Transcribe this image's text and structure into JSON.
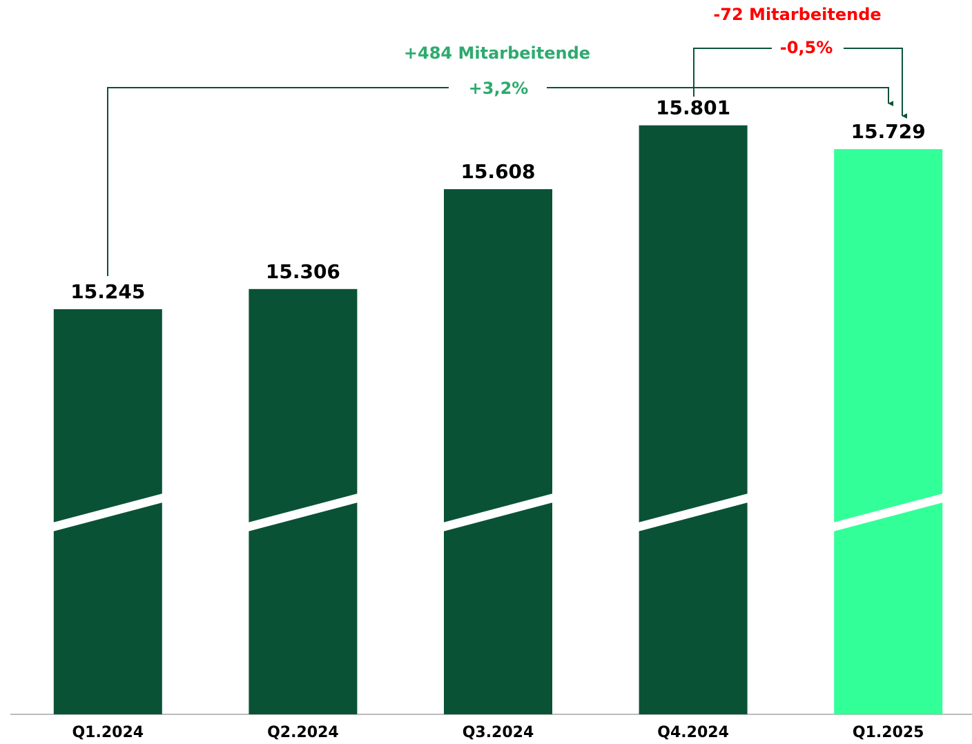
{
  "chart_data": {
    "type": "bar",
    "categories": [
      "Q1.2024",
      "Q2.2024",
      "Q3.2024",
      "Q4.2024",
      "Q1.2025"
    ],
    "values": [
      15245,
      15306,
      15608,
      15801,
      15729
    ],
    "value_labels": [
      "15.245",
      "15.306",
      "15.608",
      "15.801",
      "15.729"
    ],
    "colors": [
      "#0a5236",
      "#0a5236",
      "#0a5236",
      "#0a5236",
      "#33ff99"
    ],
    "ylim": [
      14020,
      16180
    ],
    "annotations": [
      {
        "text": "+484 Mitarbeitende",
        "color": "#2eaa6e"
      },
      {
        "text": "+3,2%",
        "color": "#2eaa6e"
      },
      {
        "text": "-72 Mitarbeitende",
        "color": "#ff0000"
      },
      {
        "text": "-0,5%",
        "color": "#ff0000"
      }
    ]
  }
}
